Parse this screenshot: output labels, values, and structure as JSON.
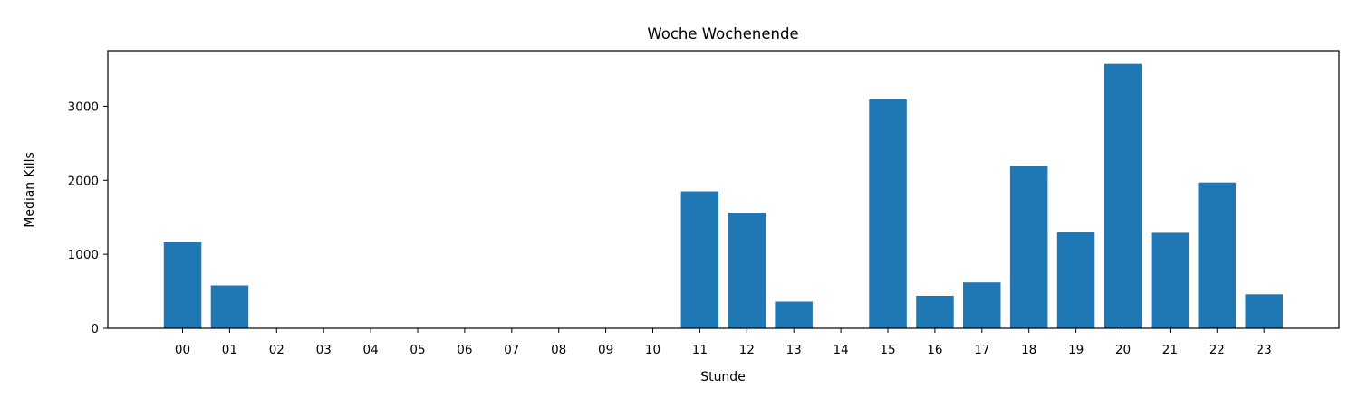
{
  "chart_data": {
    "type": "bar",
    "title": "Woche Wochenende",
    "xlabel": "Stunde",
    "ylabel": "Median Kills",
    "categories": [
      "00",
      "01",
      "02",
      "03",
      "04",
      "05",
      "06",
      "07",
      "08",
      "09",
      "10",
      "11",
      "12",
      "13",
      "14",
      "15",
      "16",
      "17",
      "18",
      "19",
      "20",
      "21",
      "22",
      "23"
    ],
    "values": [
      1160,
      580,
      0,
      0,
      0,
      0,
      0,
      0,
      0,
      0,
      0,
      1850,
      1560,
      360,
      0,
      3090,
      440,
      620,
      2190,
      1300,
      3570,
      1290,
      1970,
      460
    ],
    "ylim": [
      0,
      3750
    ],
    "yticks": [
      0,
      1000,
      2000,
      3000
    ],
    "grid": false,
    "bar_color": "#1f77b4"
  }
}
